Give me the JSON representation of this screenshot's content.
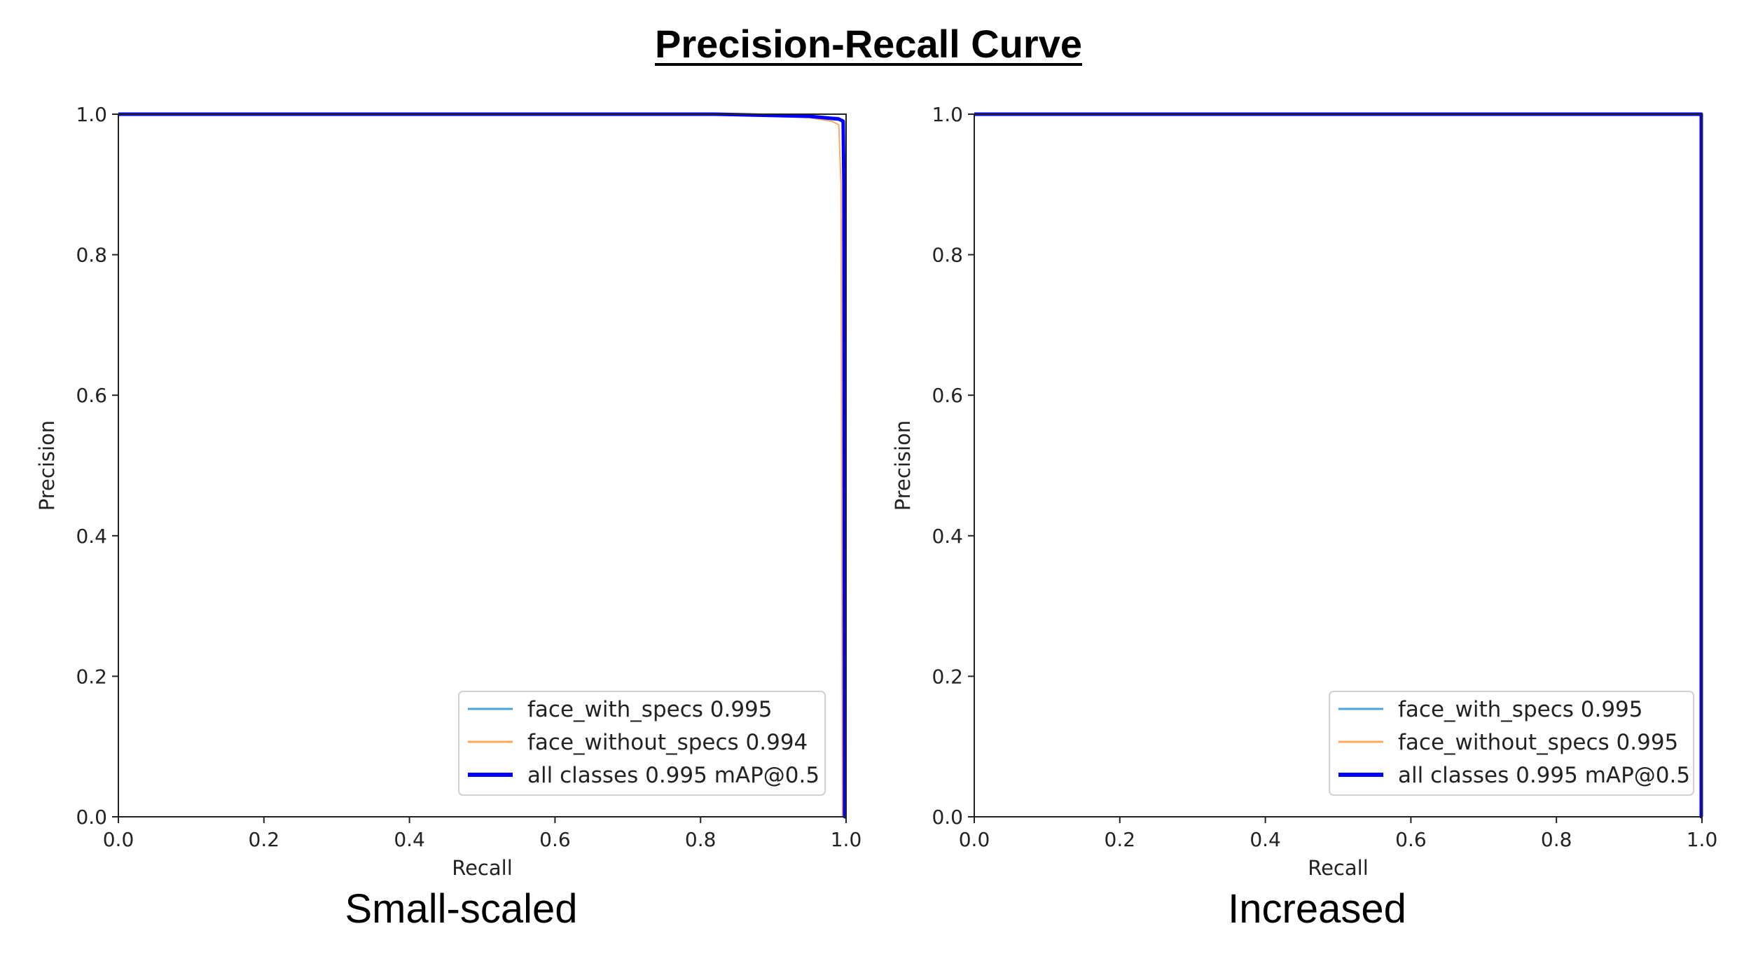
{
  "title": "Precision-Recall Curve",
  "colors": {
    "face_with_specs": "#4aa3d8",
    "face_without_specs": "#ffa85a",
    "all_classes": "#0000ff",
    "axis": "#222222",
    "legend_border": "#d0d0d0"
  },
  "chart_data": [
    {
      "type": "line",
      "caption": "Small-scaled",
      "xlabel": "Recall",
      "ylabel": "Precision",
      "xlim": [
        0.0,
        1.0
      ],
      "ylim": [
        0.0,
        1.0
      ],
      "xticks": [
        "0.0",
        "0.2",
        "0.4",
        "0.6",
        "0.8",
        "1.0"
      ],
      "yticks": [
        "0.0",
        "0.2",
        "0.4",
        "0.6",
        "0.8",
        "1.0"
      ],
      "legend_position": "bottom-right",
      "series": [
        {
          "name": "face_with_specs 0.995",
          "color_key": "face_with_specs",
          "width": 2,
          "x": [
            0.0,
            0.8,
            0.95,
            0.99,
            0.995,
            0.997,
            0.998,
            1.0
          ],
          "y": [
            1.0,
            1.0,
            0.998,
            0.995,
            0.99,
            0.9,
            0.0,
            0.0
          ]
        },
        {
          "name": "face_without_specs 0.994",
          "color_key": "face_without_specs",
          "width": 2,
          "x": [
            0.0,
            0.82,
            0.95,
            0.98,
            0.99,
            0.993,
            0.995,
            1.0
          ],
          "y": [
            1.0,
            1.0,
            0.995,
            0.99,
            0.985,
            0.9,
            0.0,
            0.0
          ]
        },
        {
          "name": "all classes 0.995 mAP@0.5",
          "color_key": "all_classes",
          "width": 5,
          "x": [
            0.0,
            0.82,
            0.95,
            0.99,
            0.996,
            0.997,
            0.998,
            1.0
          ],
          "y": [
            1.0,
            1.0,
            0.997,
            0.993,
            0.99,
            0.9,
            0.0,
            0.0
          ]
        }
      ]
    },
    {
      "type": "line",
      "caption": "Increased",
      "xlabel": "Recall",
      "ylabel": "Precision",
      "xlim": [
        0.0,
        1.0
      ],
      "ylim": [
        0.0,
        1.0
      ],
      "xticks": [
        "0.0",
        "0.2",
        "0.4",
        "0.6",
        "0.8",
        "1.0"
      ],
      "yticks": [
        "0.0",
        "0.2",
        "0.4",
        "0.6",
        "0.8",
        "1.0"
      ],
      "legend_position": "bottom-right",
      "series": [
        {
          "name": "face_with_specs 0.995",
          "color_key": "face_with_specs",
          "width": 2,
          "x": [
            0.0,
            0.999,
            0.999,
            1.0
          ],
          "y": [
            1.0,
            1.0,
            0.0,
            0.0
          ]
        },
        {
          "name": "face_without_specs 0.995",
          "color_key": "face_without_specs",
          "width": 2,
          "x": [
            0.0,
            0.999,
            0.999,
            1.0
          ],
          "y": [
            1.0,
            1.0,
            0.0,
            0.0
          ]
        },
        {
          "name": "all classes 0.995 mAP@0.5",
          "color_key": "all_classes",
          "width": 5,
          "x": [
            0.0,
            0.999,
            0.999,
            1.0
          ],
          "y": [
            1.0,
            1.0,
            0.0,
            0.0
          ]
        }
      ]
    }
  ]
}
